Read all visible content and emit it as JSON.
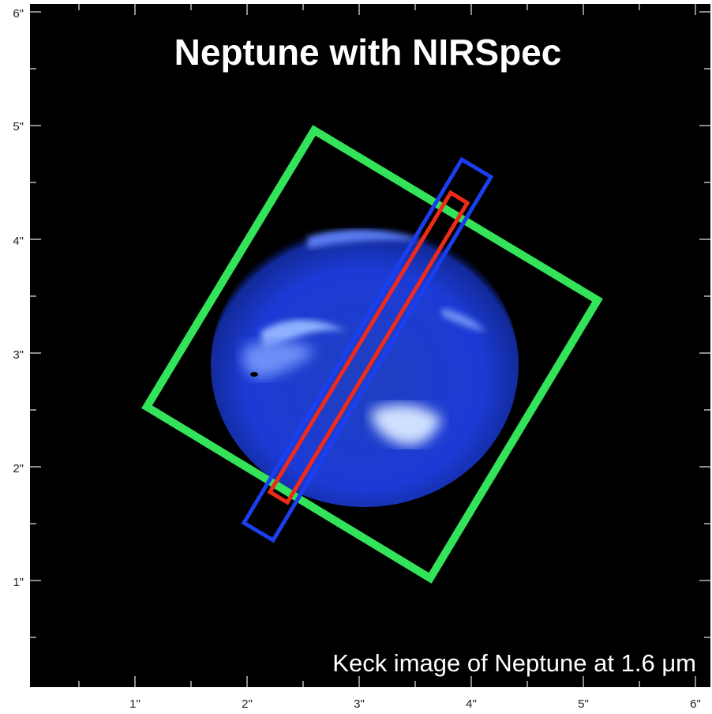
{
  "title": "Neptune with NIRSpec",
  "caption": "Keck image of Neptune at 1.6 μm",
  "x_axis": {
    "tick_labels": [
      "1\"",
      "2\"",
      "3\"",
      "4\"",
      "5\"",
      "6\""
    ]
  },
  "y_axis": {
    "tick_labels": [
      "6\"",
      "5\"",
      "4\"",
      "3\"",
      "2\"",
      "1\""
    ]
  }
}
